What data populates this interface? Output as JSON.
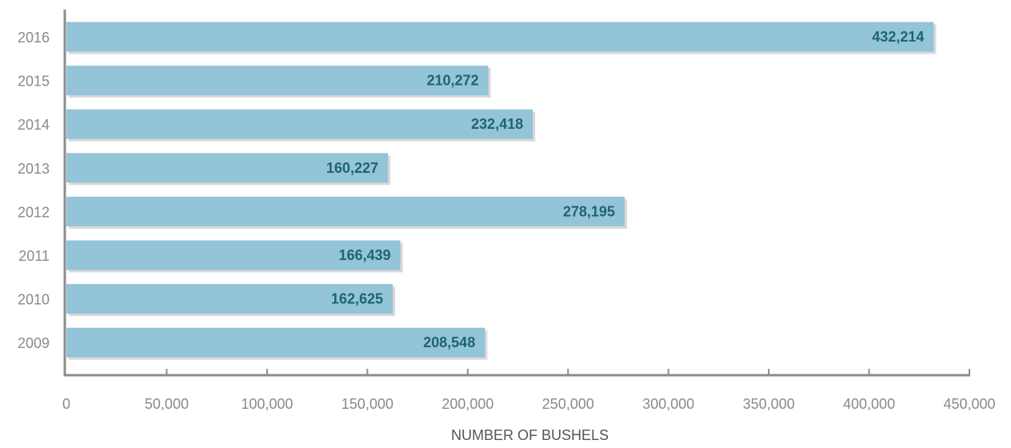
{
  "chart_data": {
    "type": "bar",
    "orientation": "horizontal",
    "title": "",
    "xlabel": "NUMBER OF BUSHELS",
    "ylabel": "",
    "categories": [
      "2016",
      "2015",
      "2014",
      "2013",
      "2012",
      "2011",
      "2010",
      "2009"
    ],
    "values": [
      432214,
      210272,
      232418,
      160227,
      278195,
      166439,
      162625,
      208548
    ],
    "value_labels": [
      "432,214",
      "210,272",
      "232,418",
      "160,227",
      "278,195",
      "166,439",
      "162,625",
      "208,548"
    ],
    "xlim": [
      0,
      450000
    ],
    "x_ticks": [
      0,
      50000,
      100000,
      150000,
      200000,
      250000,
      300000,
      350000,
      400000,
      450000
    ],
    "x_tick_labels": [
      "0",
      "50,000",
      "100,000",
      "150,000",
      "200,000",
      "250,000",
      "300,000",
      "350,000",
      "400,000",
      "450,000"
    ],
    "grid": false,
    "legend": "none",
    "colors": {
      "bar": "#93c4d8",
      "data_label": "#1f6470",
      "axis": "#8c8c8c",
      "tick_text": "#8a8a8a"
    }
  }
}
